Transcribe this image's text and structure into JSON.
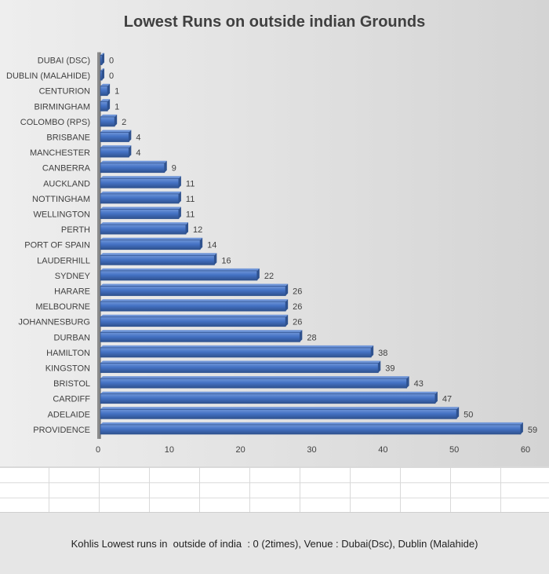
{
  "note": "Kohlis Lowest runs in  outside of india  : 0 (2times), Venue : Dubai(Dsc), Dublin (Malahide)",
  "colors": {
    "bar": "#4472c4",
    "bar_dark": "#2f528f",
    "bar_light": "#6f95d8",
    "text": "#404040"
  },
  "chart_data": {
    "type": "bar",
    "orientation": "horizontal",
    "title": "Lowest Runs on outside indian Grounds",
    "xlabel": "",
    "ylabel": "",
    "xlim": [
      0,
      60
    ],
    "xticks": [
      0,
      10,
      20,
      30,
      40,
      50,
      60
    ],
    "grid": false,
    "legend": "none",
    "data_labels": true,
    "categories": [
      "DUBAI (DSC)",
      "DUBLIN (MALAHIDE)",
      "CENTURION",
      "BIRMINGHAM",
      "COLOMBO (RPS)",
      "BRISBANE",
      "MANCHESTER",
      "CANBERRA",
      "AUCKLAND",
      "NOTTINGHAM",
      "WELLINGTON",
      "PERTH",
      "PORT OF SPAIN",
      "LAUDERHILL",
      "SYDNEY",
      "HARARE",
      "MELBOURNE",
      "JOHANNESBURG",
      "DURBAN",
      "HAMILTON",
      "KINGSTON",
      "BRISTOL",
      "CARDIFF",
      "ADELAIDE",
      "PROVIDENCE"
    ],
    "values": [
      0,
      0,
      1,
      1,
      2,
      4,
      4,
      9,
      11,
      11,
      11,
      12,
      14,
      16,
      22,
      26,
      26,
      26,
      28,
      38,
      39,
      43,
      47,
      50,
      59
    ]
  }
}
